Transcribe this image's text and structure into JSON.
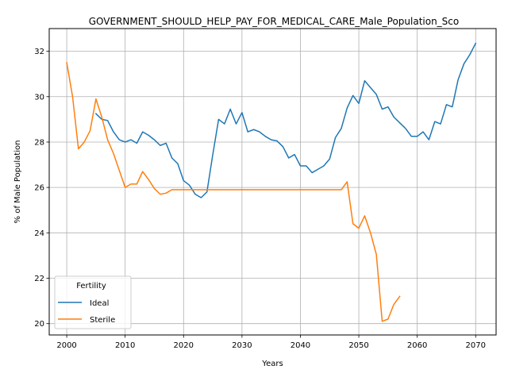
{
  "chart_data": {
    "type": "line",
    "title": "GOVERNMENT_SHOULD_HELP_PAY_FOR_MEDICAL_CARE_Male_Population_Sco",
    "xlabel": "Years",
    "ylabel": "% of Male Population",
    "xlim": [
      1997,
      2073.5
    ],
    "ylim": [
      19.5,
      33.0
    ],
    "xticks": [
      2000,
      2010,
      2020,
      2030,
      2040,
      2050,
      2060,
      2070
    ],
    "yticks": [
      20,
      22,
      24,
      26,
      28,
      30,
      32
    ],
    "grid": true,
    "legend": {
      "title": "Fertility",
      "placement": "lower-left"
    },
    "series": [
      {
        "name": "Ideal",
        "color": "#1f77b4",
        "x": [
          2005,
          2006,
          2007,
          2008,
          2009,
          2010,
          2011,
          2012,
          2013,
          2014,
          2015,
          2016,
          2017,
          2018,
          2019,
          2020,
          2021,
          2022,
          2023,
          2024,
          2025,
          2026,
          2027,
          2028,
          2029,
          2030,
          2031,
          2032,
          2033,
          2034,
          2035,
          2036,
          2037,
          2038,
          2039,
          2040,
          2041,
          2042,
          2043,
          2044,
          2045,
          2046,
          2047,
          2048,
          2049,
          2050,
          2051,
          2052,
          2053,
          2054,
          2055,
          2056,
          2057,
          2058,
          2059,
          2060,
          2061,
          2062,
          2063,
          2064,
          2065,
          2066,
          2067,
          2068,
          2069,
          2070
        ],
        "y": [
          29.25,
          29.0,
          28.95,
          28.45,
          28.1,
          28.0,
          28.1,
          27.95,
          28.45,
          28.3,
          28.1,
          27.85,
          27.95,
          27.3,
          27.05,
          26.3,
          26.1,
          25.7,
          25.55,
          25.8,
          27.45,
          29.0,
          28.8,
          29.45,
          28.8,
          29.3,
          28.45,
          28.55,
          28.45,
          28.25,
          28.1,
          28.05,
          27.8,
          27.3,
          27.45,
          26.95,
          26.95,
          26.65,
          26.8,
          26.95,
          27.25,
          28.2,
          28.6,
          29.5,
          30.05,
          29.7,
          30.7,
          30.4,
          30.1,
          29.45,
          29.55,
          29.1,
          28.85,
          28.6,
          28.25,
          28.25,
          28.45,
          28.1,
          28.9,
          28.8,
          29.65,
          29.55,
          30.75,
          31.45,
          31.85,
          32.35
        ]
      },
      {
        "name": "Sterile",
        "color": "#ff7f0e",
        "x": [
          2000,
          2001,
          2002,
          2003,
          2004,
          2005,
          2006,
          2007,
          2008,
          2009,
          2010,
          2011,
          2012,
          2013,
          2014,
          2015,
          2016,
          2017,
          2018,
          2019,
          2020,
          2021,
          2022,
          2023,
          2024,
          2025,
          2026,
          2027,
          2028,
          2029,
          2030,
          2031,
          2032,
          2033,
          2034,
          2035,
          2036,
          2037,
          2038,
          2039,
          2040,
          2041,
          2042,
          2043,
          2044,
          2045,
          2046,
          2047,
          2048,
          2049,
          2050,
          2051,
          2052,
          2053,
          2054,
          2055,
          2056,
          2057
        ],
        "y": [
          31.5,
          30.0,
          27.7,
          28.0,
          28.5,
          29.9,
          29.1,
          28.1,
          27.5,
          26.75,
          26.0,
          26.15,
          26.15,
          26.7,
          26.35,
          25.95,
          25.7,
          25.75,
          25.9,
          25.9,
          25.9,
          25.9,
          25.9,
          25.9,
          25.9,
          25.9,
          25.9,
          25.9,
          25.9,
          25.9,
          25.9,
          25.9,
          25.9,
          25.9,
          25.9,
          25.9,
          25.9,
          25.9,
          25.9,
          25.9,
          25.9,
          25.9,
          25.9,
          25.9,
          25.9,
          25.9,
          25.9,
          25.9,
          26.25,
          24.4,
          24.2,
          24.75,
          24.0,
          23.05,
          20.1,
          20.2,
          20.85,
          21.2
        ]
      }
    ]
  }
}
